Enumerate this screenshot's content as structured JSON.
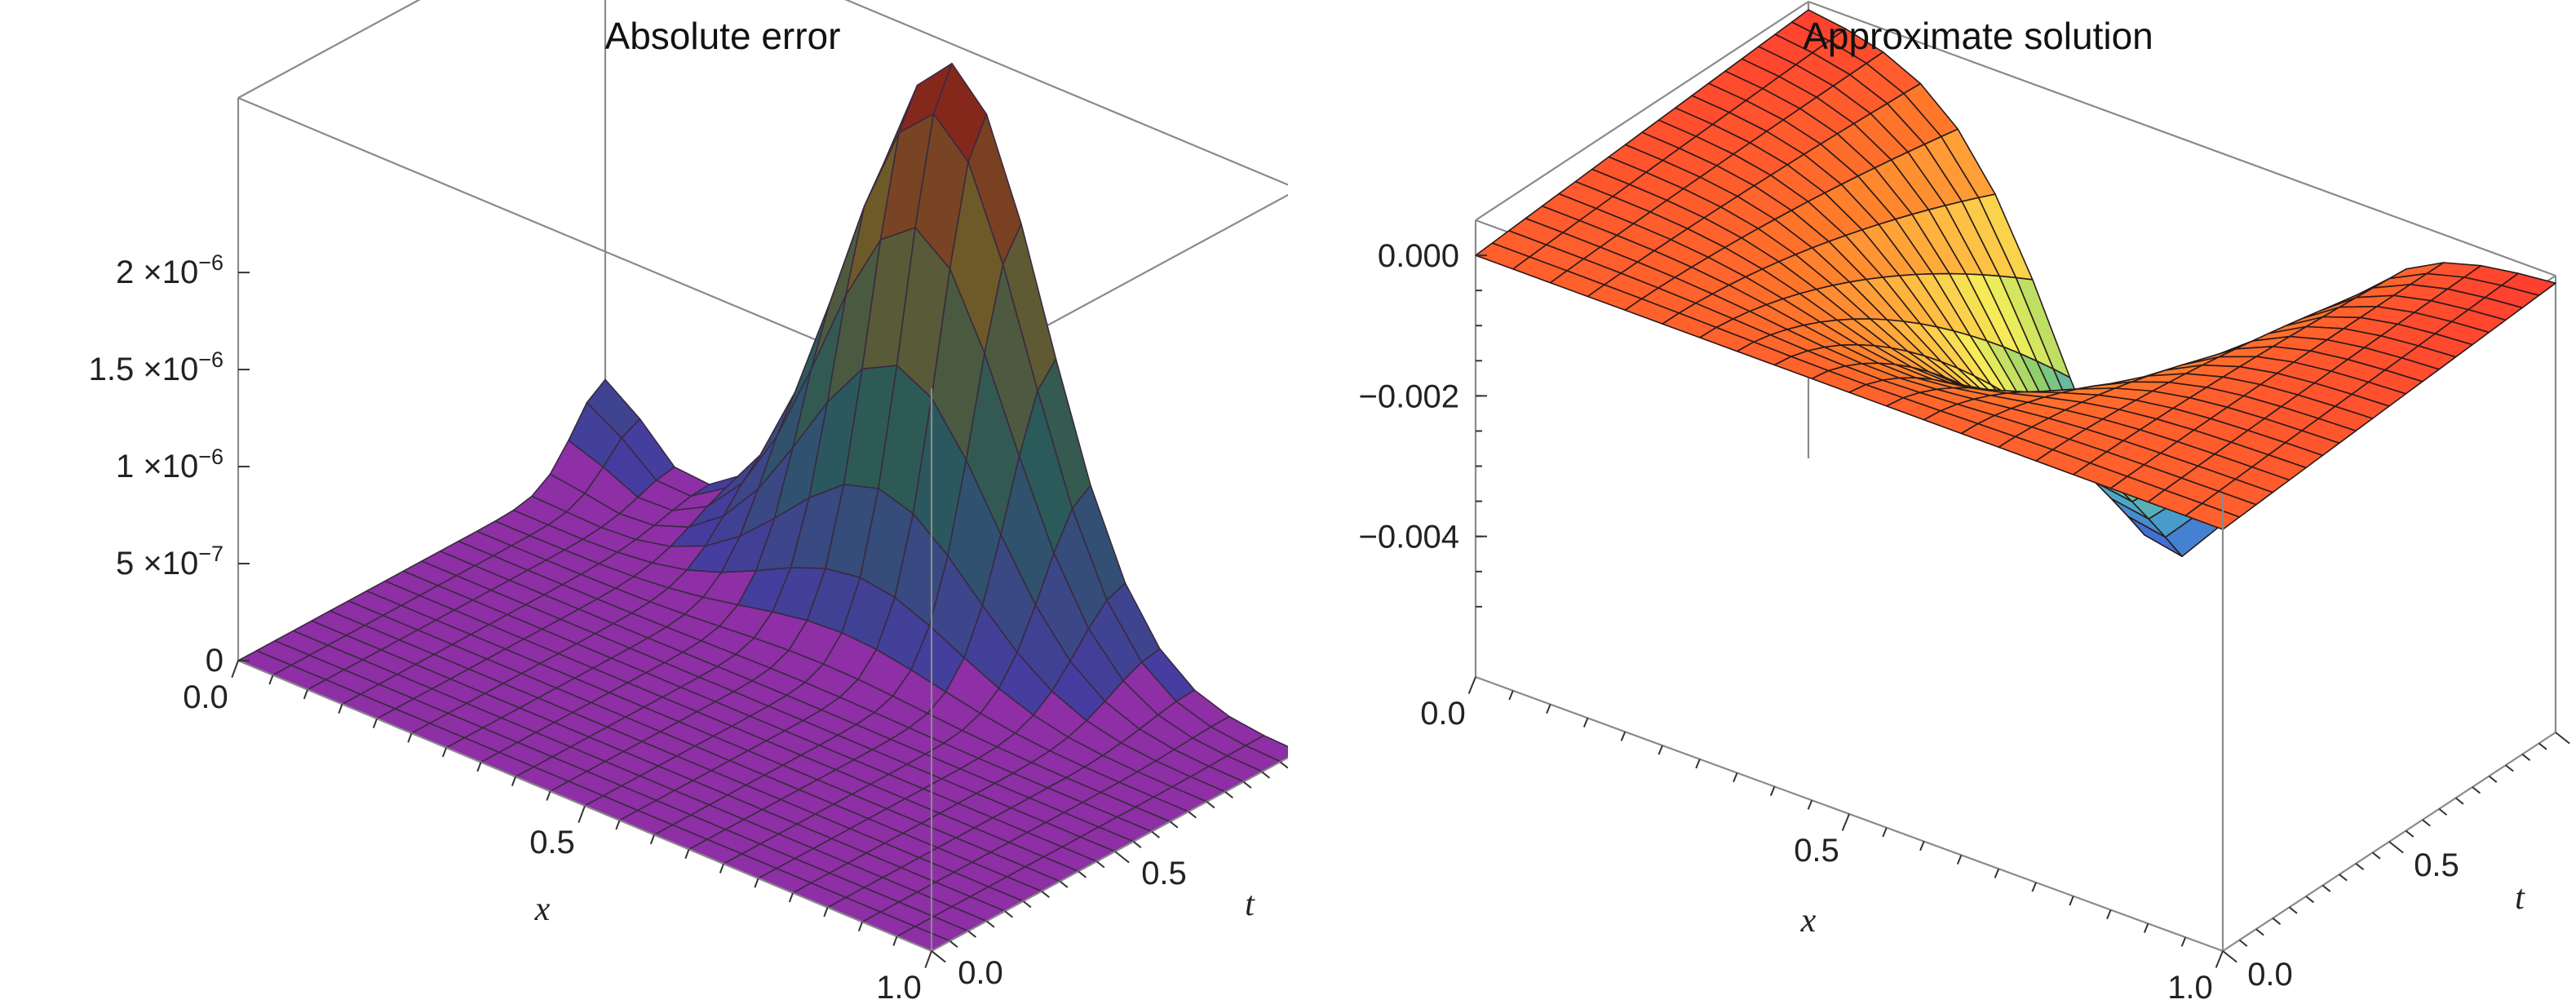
{
  "chart_data": [
    {
      "type": "surface3d",
      "title": "Absolute error",
      "xlabel": "x",
      "ylabel": "t",
      "zlabel": "",
      "x_range": [
        0,
        1
      ],
      "t_range": [
        0,
        1
      ],
      "z_range": [
        0,
        2.9e-06
      ],
      "x_ticks": [
        "0.0",
        "0.5",
        "1.0"
      ],
      "t_ticks": [
        "0.0",
        "0.5",
        "1.0"
      ],
      "z_ticks": [
        {
          "mant": "0",
          "exp": ""
        },
        {
          "mant": "5 ×10",
          "exp": "−7"
        },
        {
          "mant": "1 ×10",
          "exp": "−6"
        },
        {
          "mant": "1.5 ×10",
          "exp": "−6"
        },
        {
          "mant": "2 ×10",
          "exp": "−6"
        }
      ],
      "z_tick_values": [
        0,
        5e-07,
        1e-06,
        1.5e-06,
        2e-06
      ],
      "peak": {
        "x": 0.5,
        "t": 1.0,
        "z": 2.8e-06
      },
      "surface_color": "#8e2fa6",
      "mesh_lines": 20
    },
    {
      "type": "surface3d",
      "title": "Approximate  solution",
      "xlabel": "x",
      "ylabel": "t",
      "zlabel": "",
      "x_range": [
        0,
        1
      ],
      "t_range": [
        0,
        1
      ],
      "z_range": [
        -0.006,
        0.0005
      ],
      "x_ticks": [
        "0.0",
        "0.5",
        "1.0"
      ],
      "t_ticks": [
        "0.0",
        "0.5",
        "1.0"
      ],
      "z_ticks": [
        {
          "mant": "0.000",
          "exp": ""
        },
        {
          "mant": "−0.002",
          "exp": ""
        },
        {
          "mant": "−0.004",
          "exp": ""
        }
      ],
      "z_tick_values": [
        0,
        -0.002,
        -0.004
      ],
      "min": {
        "x": 0.5,
        "t": 1.0,
        "z": -0.0055
      },
      "colormap": [
        "#ff3a30",
        "#ff7a2a",
        "#ffb640",
        "#f4f05a",
        "#8fd06a",
        "#4aa8c8",
        "#3e5ad8"
      ],
      "mesh_lines": 20
    }
  ]
}
